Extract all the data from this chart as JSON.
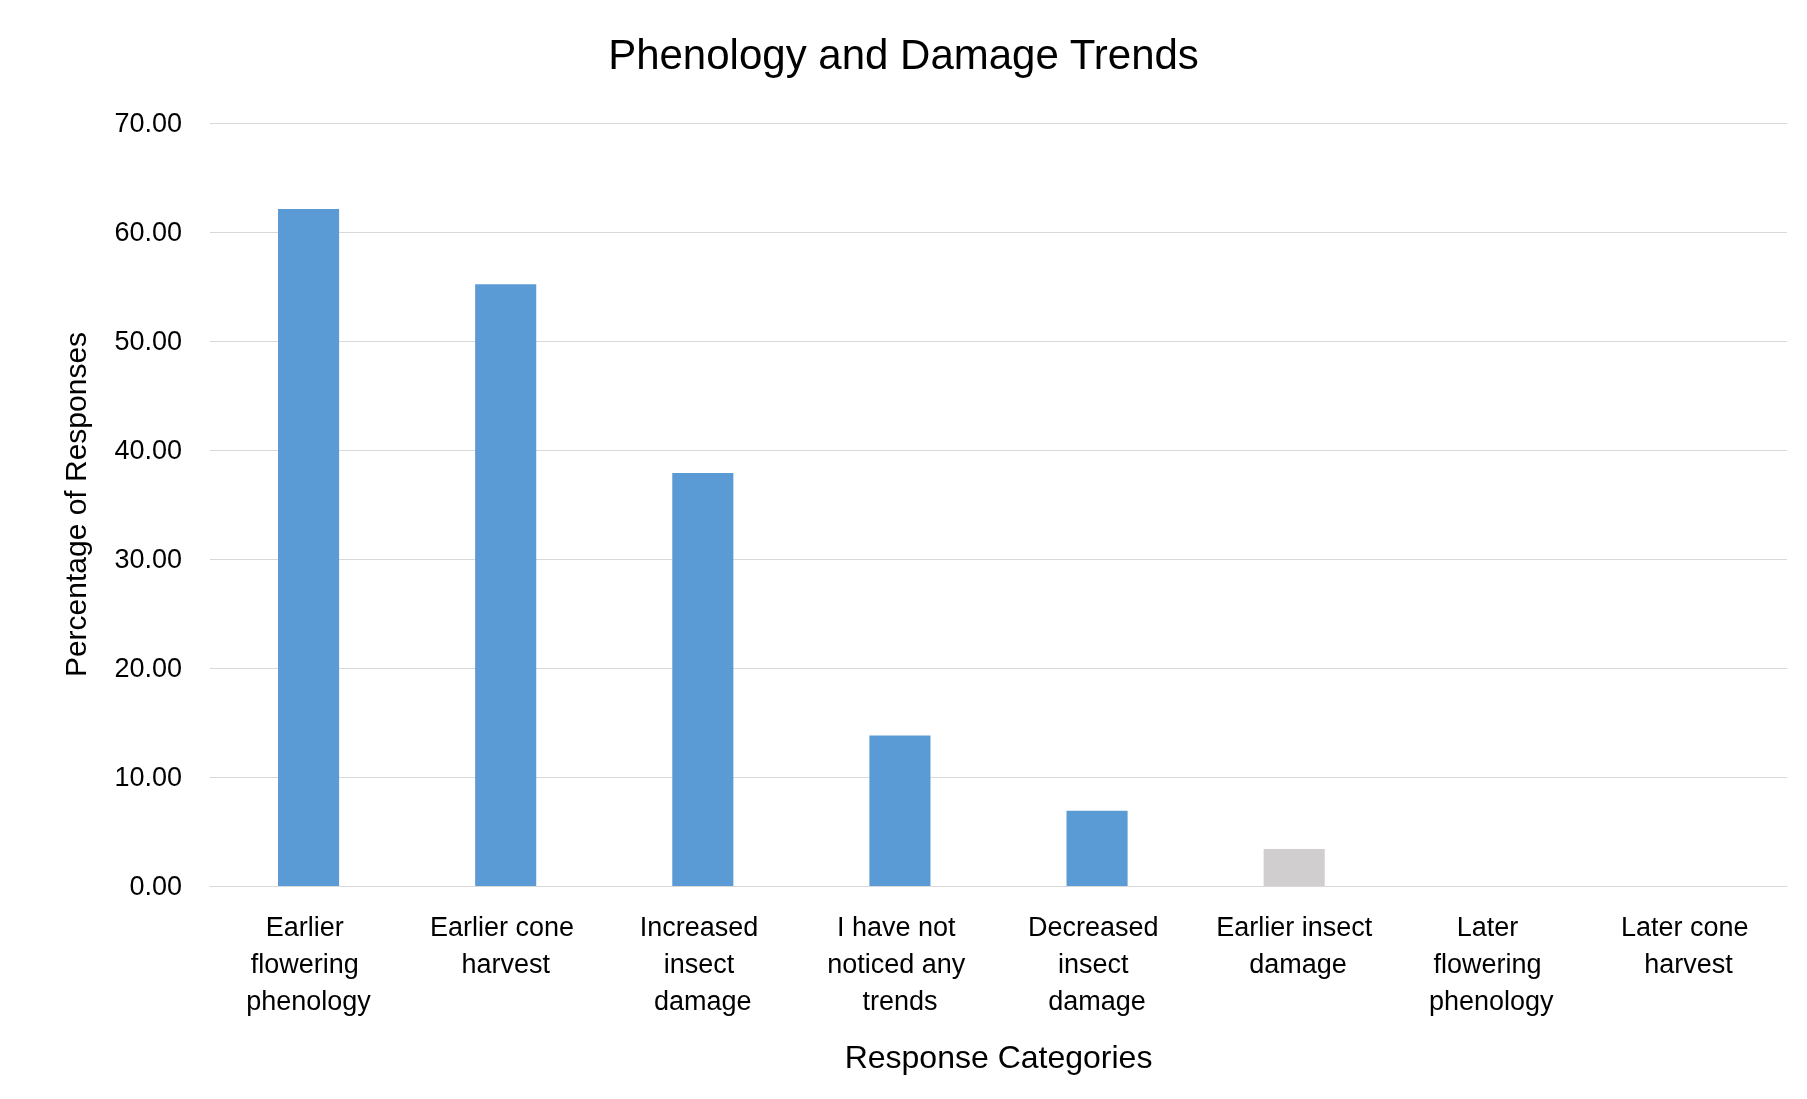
{
  "chart_data": {
    "type": "bar",
    "title": "Phenology and Damage Trends",
    "xlabel": "Response Categories",
    "ylabel": "Percentage of Responses",
    "categories": [
      "Earlier flowering phenology",
      "Earlier cone harvest",
      "Increased insect damage",
      "I have not noticed any trends",
      "Decreased insect damage",
      "Earlier insect damage",
      "Later flowering phenology",
      "Later cone harvest"
    ],
    "values": [
      62.1,
      55.2,
      37.9,
      13.8,
      6.9,
      3.4,
      0,
      0
    ],
    "colors": [
      "#5b9bd5",
      "#5b9bd5",
      "#5b9bd5",
      "#5b9bd5",
      "#5b9bd5",
      "#d0cece",
      "#5b9bd5",
      "#5b9bd5"
    ],
    "ylim": [
      0,
      70
    ],
    "yticks": [
      {
        "value": 0,
        "label": "0.00"
      },
      {
        "value": 10,
        "label": "10.00"
      },
      {
        "value": 20,
        "label": "20.00"
      },
      {
        "value": 30,
        "label": "30.00"
      },
      {
        "value": 40,
        "label": "40.00"
      },
      {
        "value": 50,
        "label": "50.00"
      },
      {
        "value": 60,
        "label": "60.00"
      },
      {
        "value": 70,
        "label": "70.00"
      }
    ],
    "grid": "y"
  }
}
